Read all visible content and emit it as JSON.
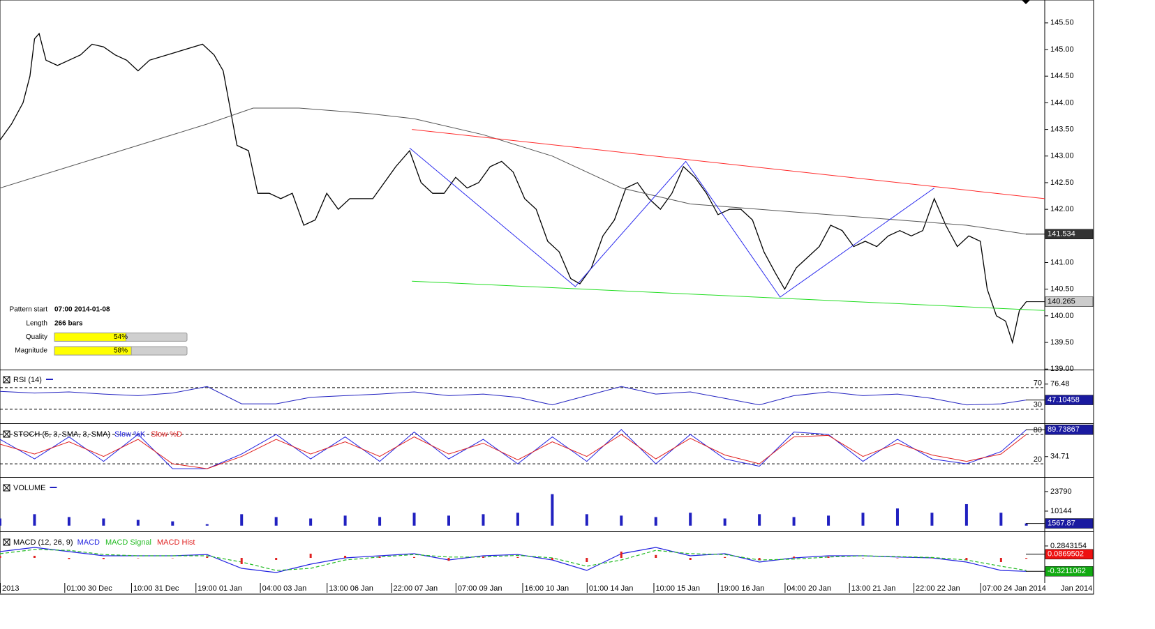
{
  "chart_data": [
    {
      "type": "line",
      "xlim": [
        0,
        454
      ],
      "ylim": [
        138.99,
        145.93
      ],
      "yticks": [
        {
          "value": 145.5,
          "label": "145.50"
        },
        {
          "value": 145,
          "label": "145.00"
        },
        {
          "value": 144.5,
          "label": "144.50"
        },
        {
          "value": 144,
          "label": "144.00"
        },
        {
          "value": 143.5,
          "label": "143.50"
        },
        {
          "value": 143,
          "label": "143.00"
        },
        {
          "value": 142.5,
          "label": "142.50"
        },
        {
          "value": 142,
          "label": "142.00"
        },
        {
          "value": 141,
          "label": "141.00"
        },
        {
          "value": 140.5,
          "label": "140.50"
        },
        {
          "value": 140,
          "label": "140.00"
        },
        {
          "value": 139.5,
          "label": "139.50"
        },
        {
          "value": 139,
          "label": "139.00"
        }
      ],
      "series": [
        {
          "color": "#000000",
          "width": 1.3,
          "x": [
            0,
            5,
            10,
            13,
            15,
            17,
            20,
            25,
            30,
            35,
            40,
            45,
            50,
            55,
            60,
            65,
            88,
            93,
            97,
            100,
            103,
            108,
            112,
            117,
            122,
            127,
            132,
            137,
            142,
            147,
            152,
            157,
            162,
            167,
            172,
            178,
            183,
            188,
            193,
            198,
            203,
            208,
            213,
            218,
            223,
            228,
            233,
            238,
            243,
            248,
            252,
            257,
            262,
            267,
            272,
            277,
            282,
            287,
            292,
            297,
            302,
            307,
            312,
            317,
            322,
            327,
            332,
            337,
            341,
            346,
            351,
            356,
            361,
            366,
            371,
            376,
            381,
            386,
            391,
            396,
            401,
            406,
            411,
            416,
            421,
            426,
            429,
            433,
            437,
            440,
            443,
            446
          ],
          "values": [
            143.3,
            143.6,
            144.0,
            144.5,
            145.2,
            145.3,
            144.8,
            144.7,
            144.8,
            144.9,
            145.1,
            145.05,
            144.9,
            144.8,
            144.6,
            144.8,
            145.1,
            144.9,
            144.6,
            143.9,
            143.2,
            143.1,
            142.3,
            142.3,
            142.2,
            142.3,
            141.7,
            141.8,
            142.3,
            142.0,
            142.2,
            142.2,
            142.2,
            142.5,
            142.8,
            143.1,
            142.5,
            142.3,
            142.3,
            142.6,
            142.4,
            142.5,
            142.8,
            142.9,
            142.7,
            142.2,
            142.0,
            141.4,
            141.2,
            140.7,
            140.6,
            140.9,
            141.5,
            141.8,
            142.4,
            142.5,
            142.2,
            142.0,
            142.3,
            142.8,
            142.6,
            142.3,
            141.9,
            142.0,
            142.0,
            141.8,
            141.2,
            140.8,
            140.5,
            140.9,
            141.1,
            141.3,
            141.7,
            141.6,
            141.3,
            141.4,
            141.3,
            141.5,
            141.6,
            141.5,
            141.6,
            142.2,
            141.7,
            141.3,
            141.5,
            141.4,
            140.5,
            140.0,
            139.9,
            139.5,
            140.1,
            140.265
          ]
        },
        {
          "color": "#555555",
          "width": 1,
          "x": [
            0,
            30,
            60,
            90,
            110,
            130,
            160,
            180,
            210,
            240,
            270,
            300,
            330,
            360,
            390,
            420,
            446
          ],
          "values": [
            142.4,
            142.8,
            143.2,
            143.6,
            143.9,
            143.9,
            143.8,
            143.7,
            143.4,
            143.0,
            142.4,
            142.1,
            142.0,
            141.9,
            141.8,
            141.7,
            141.534
          ]
        },
        {
          "color": "#ff2a2a",
          "width": 1,
          "x": [
            179,
            454
          ],
          "values": [
            143.5,
            142.2
          ]
        },
        {
          "color": "#22dd22",
          "width": 1,
          "x": [
            179,
            454
          ],
          "values": [
            140.65,
            140.1
          ]
        },
        {
          "color": "#2a2aee",
          "width": 1,
          "x": [
            178,
            250,
            298,
            339,
            406
          ],
          "values": [
            143.15,
            140.55,
            142.9,
            140.35,
            142.4
          ]
        }
      ],
      "tags": [
        {
          "value": 141.534,
          "label": "141.534",
          "color": "#333333",
          "text_color": "#ffffff"
        },
        {
          "value": 140.265,
          "label": "140.265",
          "color": "#cccccc",
          "text_color": "#000000"
        }
      ]
    },
    {
      "type": "line",
      "title": "RSI (14)",
      "xlim": [
        0,
        454
      ],
      "ylim": [
        4,
        102
      ],
      "yticks": [
        76.48
      ],
      "levels": [
        70,
        30
      ],
      "series": [
        {
          "color": "#2020c0",
          "width": 1,
          "x": [
            0,
            15,
            30,
            45,
            60,
            75,
            90,
            105,
            120,
            135,
            150,
            165,
            180,
            195,
            210,
            225,
            240,
            255,
            270,
            285,
            300,
            315,
            330,
            345,
            360,
            375,
            390,
            405,
            420,
            435,
            446
          ],
          "values": [
            63,
            60,
            62,
            58,
            55,
            60,
            72,
            40,
            40,
            52,
            55,
            58,
            62,
            55,
            58,
            52,
            38,
            55,
            72,
            58,
            62,
            50,
            38,
            55,
            62,
            55,
            58,
            50,
            38,
            40,
            47.10458
          ]
        }
      ],
      "tags": [
        {
          "value": 47.10458,
          "label": "47.10458",
          "color": "#1a1aa0",
          "text_color": "#ffffff"
        }
      ]
    },
    {
      "type": "line",
      "title": "STOCH (5, 3, SMA, 3, SMA)",
      "xlim": [
        0,
        454
      ],
      "ylim": [
        -7,
        100
      ],
      "yticks": [
        34.71
      ],
      "levels": [
        80,
        20
      ],
      "series": [
        {
          "name": "Slow %K",
          "color": "#2020e0",
          "width": 1,
          "x": [
            0,
            15,
            30,
            45,
            60,
            75,
            90,
            105,
            120,
            135,
            150,
            165,
            180,
            195,
            210,
            225,
            240,
            255,
            270,
            285,
            300,
            315,
            330,
            345,
            360,
            375,
            390,
            405,
            420,
            435,
            446
          ],
          "values": [
            70,
            30,
            75,
            25,
            80,
            10,
            10,
            40,
            80,
            30,
            75,
            25,
            85,
            30,
            70,
            20,
            75,
            25,
            90,
            20,
            80,
            30,
            15,
            85,
            80,
            25,
            70,
            30,
            20,
            45,
            89.73867
          ]
        },
        {
          "name": "Slow %D",
          "color": "#e02020",
          "width": 1,
          "x": [
            0,
            15,
            30,
            45,
            60,
            75,
            90,
            105,
            120,
            135,
            150,
            165,
            180,
            195,
            210,
            225,
            240,
            255,
            270,
            285,
            300,
            315,
            330,
            345,
            360,
            375,
            390,
            405,
            420,
            435,
            446
          ],
          "values": [
            60,
            40,
            65,
            35,
            70,
            20,
            10,
            35,
            70,
            40,
            65,
            35,
            75,
            40,
            62,
            28,
            65,
            35,
            80,
            30,
            72,
            38,
            20,
            75,
            78,
            35,
            62,
            38,
            25,
            40,
            80
          ]
        }
      ],
      "tags": [
        {
          "value": 89.73867,
          "label": "89.73867",
          "color": "#1a1aa0",
          "text_color": "#ffffff"
        }
      ]
    },
    {
      "type": "bar",
      "title": "VOLUME",
      "xlim": [
        0,
        454
      ],
      "ylim": [
        -4000,
        33000
      ],
      "yticks": [
        23790,
        10144
      ],
      "series": [
        {
          "color": "#2020c0",
          "x": [
            0,
            15,
            30,
            45,
            60,
            75,
            90,
            105,
            120,
            135,
            150,
            165,
            180,
            195,
            210,
            225,
            240,
            255,
            270,
            285,
            300,
            315,
            330,
            345,
            360,
            375,
            390,
            405,
            420,
            435,
            446
          ],
          "values": [
            5000,
            8000,
            6000,
            5000,
            4000,
            3000,
            1000,
            8000,
            6000,
            5000,
            7000,
            6000,
            9000,
            7000,
            8000,
            9000,
            22000,
            8000,
            7000,
            6000,
            9000,
            5000,
            8000,
            6000,
            7000,
            9000,
            12000,
            9000,
            15000,
            9000,
            1567.87
          ]
        }
      ],
      "tags": [
        {
          "value": 1567.87,
          "label": "1567.87",
          "color": "#1a1aa0",
          "text_color": "#ffffff"
        }
      ]
    },
    {
      "type": "line",
      "title": "MACD (12, 26, 9)",
      "xlim": [
        0,
        454
      ],
      "ylim": [
        -0.6,
        0.6
      ],
      "yticks": [
        0.2843154
      ],
      "series": [
        {
          "name": "MACD",
          "color": "#2020e0",
          "width": 1.2,
          "x": [
            0,
            15,
            30,
            45,
            60,
            75,
            90,
            105,
            120,
            135,
            150,
            165,
            180,
            195,
            210,
            225,
            240,
            255,
            270,
            285,
            300,
            315,
            330,
            345,
            360,
            375,
            390,
            405,
            420,
            435,
            446
          ],
          "values": [
            0.15,
            0.25,
            0.15,
            0.05,
            0.05,
            0.05,
            0.08,
            -0.25,
            -0.35,
            -0.15,
            0.0,
            0.05,
            0.1,
            -0.05,
            0.05,
            0.08,
            -0.05,
            -0.3,
            0.1,
            0.25,
            0.05,
            0.1,
            -0.1,
            0.0,
            0.05,
            0.05,
            0.02,
            0.0,
            -0.1,
            -0.3,
            -0.3211062
          ]
        },
        {
          "name": "MACD Signal",
          "color": "#22bb22",
          "width": 1.2,
          "dashed": true,
          "x": [
            0,
            15,
            30,
            45,
            60,
            75,
            90,
            105,
            120,
            135,
            150,
            165,
            180,
            195,
            210,
            225,
            240,
            255,
            270,
            285,
            300,
            315,
            330,
            345,
            360,
            375,
            390,
            405,
            420,
            435,
            446
          ],
          "values": [
            0.1,
            0.2,
            0.18,
            0.08,
            0.05,
            0.05,
            0.05,
            -0.1,
            -0.3,
            -0.25,
            -0.05,
            0.02,
            0.08,
            0.02,
            0.02,
            0.06,
            0.0,
            -0.2,
            -0.05,
            0.18,
            0.1,
            0.08,
            -0.05,
            -0.03,
            0.02,
            0.05,
            0.03,
            0.01,
            -0.05,
            -0.2,
            -0.3
          ]
        },
        {
          "name": "MACD Hist",
          "color": "#e02020",
          "style": "bar",
          "x": [
            0,
            15,
            30,
            45,
            60,
            75,
            90,
            105,
            120,
            135,
            150,
            165,
            180,
            195,
            210,
            225,
            240,
            255,
            270,
            285,
            300,
            315,
            330,
            345,
            360,
            375,
            390,
            405,
            420,
            435,
            446
          ],
          "values": [
            0.05,
            0.05,
            -0.03,
            -0.03,
            0,
            0,
            0.03,
            -0.15,
            -0.05,
            0.1,
            0.05,
            0.03,
            0.02,
            -0.07,
            0.03,
            0.02,
            -0.05,
            -0.1,
            0.15,
            0.07,
            -0.05,
            0.02,
            -0.05,
            0.03,
            0.03,
            0,
            -0.01,
            -0.01,
            -0.05,
            -0.1,
            -0.02
          ]
        }
      ],
      "tags": [
        {
          "value": 0.0869502,
          "label": "0.0869502",
          "color": "#ee1111",
          "text_color": "#ffffff"
        },
        {
          "value": -0.3211062,
          "label": "-0.3211062",
          "color": "#11aa11",
          "text_color": "#ffffff"
        }
      ],
      "xticks": [
        {
          "value": 0,
          "label": "2013"
        },
        {
          "value": 28,
          "label": "01:00 30 Dec"
        },
        {
          "value": 57,
          "label": "10:00 31 Dec"
        },
        {
          "value": 85,
          "label": "19:00 01 Jan"
        },
        {
          "value": 113,
          "label": "04:00 03 Jan"
        },
        {
          "value": 142,
          "label": "13:00 06 Jan"
        },
        {
          "value": 170,
          "label": "22:00 07 Jan"
        },
        {
          "value": 198,
          "label": "07:00 09 Jan"
        },
        {
          "value": 227,
          "label": "16:00 10 Jan"
        },
        {
          "value": 255,
          "label": "01:00 14 Jan"
        },
        {
          "value": 284,
          "label": "10:00 15 Jan"
        },
        {
          "value": 312,
          "label": "19:00 16 Jan"
        },
        {
          "value": 341,
          "label": "04:00 20 Jan"
        },
        {
          "value": 369,
          "label": "13:00 21 Jan"
        },
        {
          "value": 397,
          "label": "22:00 22 Jan"
        },
        {
          "value": 426,
          "label": "07:00 24 Jan 2014"
        }
      ],
      "x_corner_label": "Jan 2014"
    }
  ],
  "pattern_info": {
    "rows": [
      {
        "label": "Pattern start",
        "text": "07:00 2014-01-08"
      },
      {
        "label": "Length",
        "text": "266 bars"
      },
      {
        "label": "Quality",
        "value": 54,
        "value_label": "54%"
      },
      {
        "label": "Magnitude",
        "value": 58,
        "value_label": "58%"
      }
    ]
  }
}
